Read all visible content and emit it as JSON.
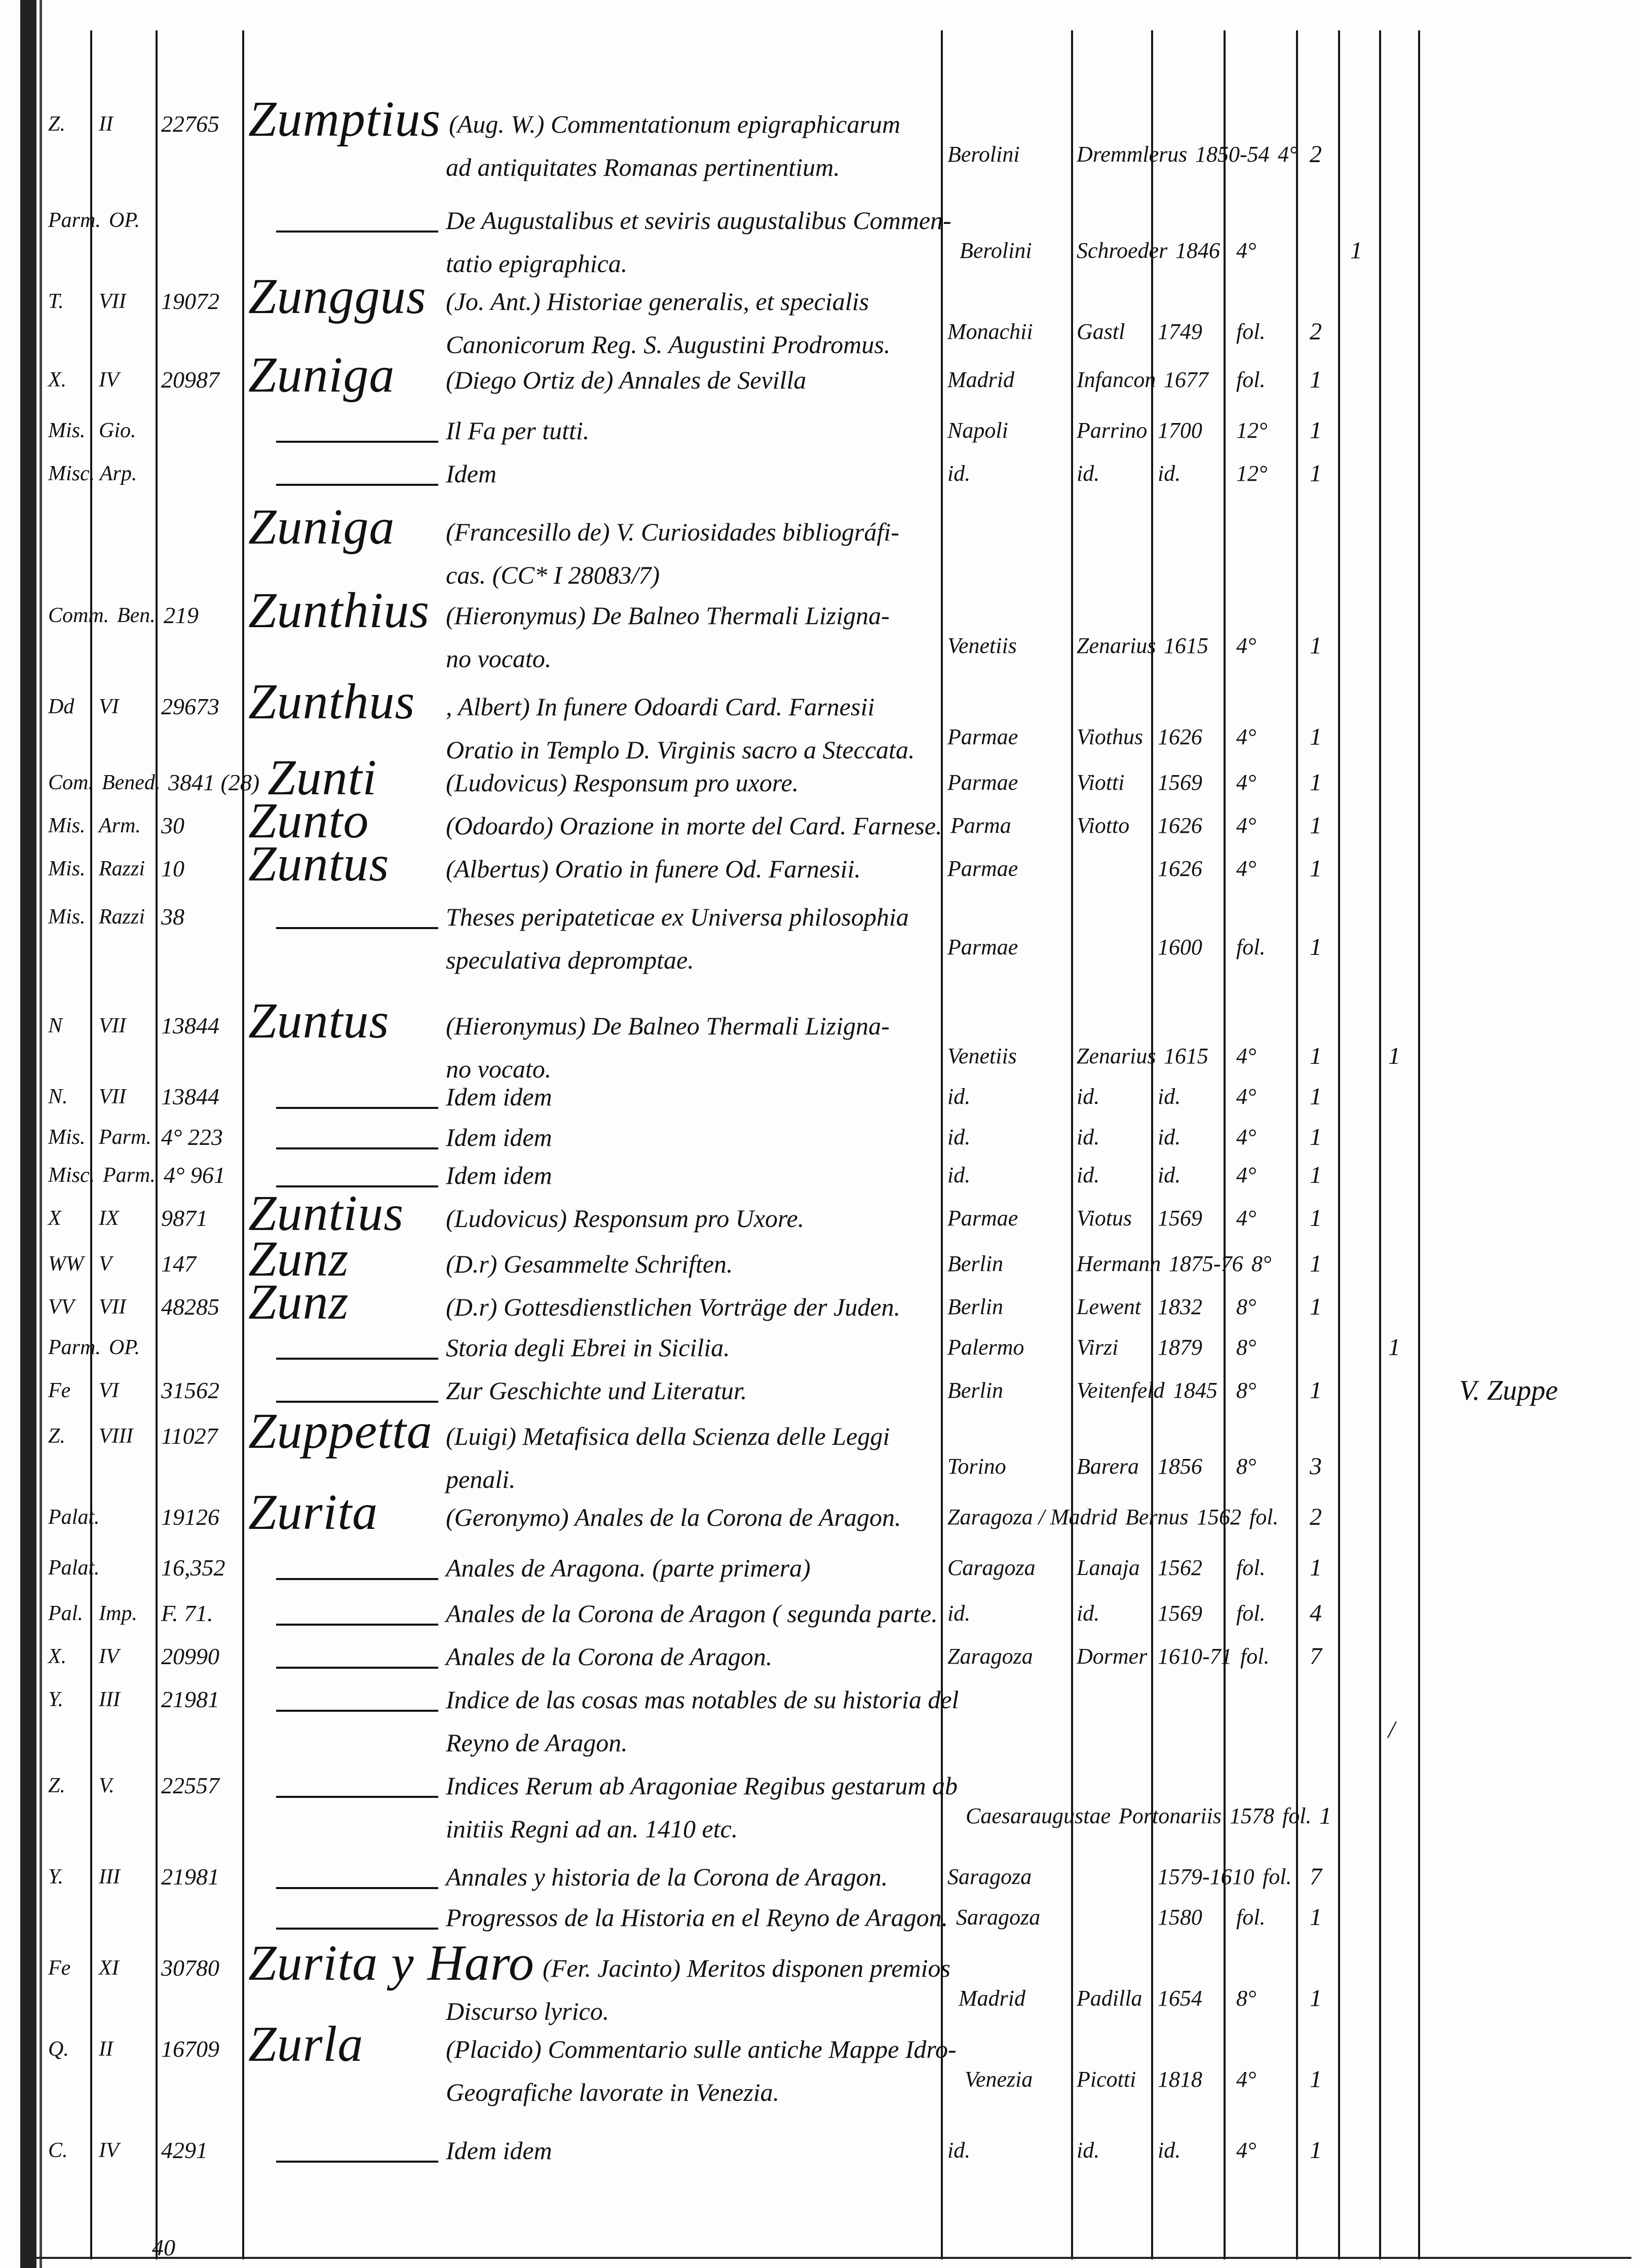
{
  "entries": [
    {
      "shelf": "Z.",
      "press": "II",
      "number": "22765",
      "author": "Zumptius",
      "title_lines": [
        "(Aug. W.) Commentationum epigraphicarum",
        "ad antiquitates Romanas pertinentium."
      ],
      "place": "Berolini",
      "publisher": "Dremmlerus",
      "year": "1850-54",
      "format": "4°",
      "vols": "2"
    },
    {
      "shelf": "Parm.",
      "press": "OP.",
      "dash": true,
      "title_lines": [
        "De Augustalibus et seviris augustalibus Commen-",
        "tatio epigraphica."
      ],
      "place": "Berolini",
      "publisher": "Schroeder",
      "year": "1846",
      "format": "4°",
      "extra1": "1"
    },
    {
      "shelf": "T.",
      "press": "VII",
      "number": "19072",
      "author": "Zunggus",
      "title_lines": [
        "(Jo. Ant.) Historiae generalis, et specialis",
        "Canonicorum Reg. S. Augustini Prodromus."
      ],
      "place": "Monachii",
      "publisher": "Gastl",
      "year": "1749",
      "format": "fol.",
      "vols": "2"
    },
    {
      "shelf": "X.",
      "press": "IV",
      "number": "20987",
      "author": "Zuniga",
      "title_lines": [
        "(Diego Ortiz de) Annales de Sevilla"
      ],
      "place": "Madrid",
      "publisher": "Infancon",
      "year": "1677",
      "format": "fol.",
      "vols": "1"
    },
    {
      "shelf": "Mis.",
      "press": "Gio.",
      "dash": true,
      "title_lines": [
        "Il Fa per tutti."
      ],
      "place": "Napoli",
      "publisher": "Parrino",
      "year": "1700",
      "format": "12°",
      "vols": "1"
    },
    {
      "shelf": "Misc. Arp.",
      "dash": true,
      "title_lines": [
        "Idem"
      ],
      "place": "id.",
      "publisher": "id.",
      "year": "id.",
      "format": "12°",
      "vols": "1"
    },
    {
      "author": "Zuniga",
      "title_lines": [
        "(Francesillo de) V. Curiosidades bibliográfi-",
        "cas. (CC* I 28083/7)"
      ]
    },
    {
      "shelf": "Comm.",
      "press": "Ben.",
      "number": "219",
      "author": "Zunthius",
      "title_lines": [
        "(Hieronymus) De Balneo Thermali Lizigna-",
        "no vocato."
      ],
      "place": "Venetiis",
      "publisher": "Zenarius",
      "year": "1615",
      "format": "4°",
      "vols": "1"
    },
    {
      "shelf": "Dd",
      "press": "VI",
      "number": "29673",
      "author": "Zunthus",
      "title_lines": [
        ", Albert) In funere Odoardi Card. Farnesii",
        "Oratio in Templo D. Virginis sacro a Steccata."
      ],
      "place": "Parmae",
      "publisher": "Viothus",
      "year": "1626",
      "format": "4°",
      "vols": "1"
    },
    {
      "shelf": "Com.",
      "press": "Bened.",
      "number": "3841 (28)",
      "author": "Zunti",
      "title_lines": [
        "(Ludovicus) Responsum pro uxore."
      ],
      "place": "Parmae",
      "publisher": "Viotti",
      "year": "1569",
      "format": "4°",
      "vols": "1"
    },
    {
      "shelf": "Mis.",
      "press": "Arm.",
      "number": "30",
      "author": "Zunto",
      "title_lines": [
        "(Odoardo) Orazione in morte del Card. Farnese."
      ],
      "place": "Parma",
      "publisher": "Viotto",
      "year": "1626",
      "format": "4°",
      "vols": "1"
    },
    {
      "shelf": "Mis.",
      "press": "Razzi",
      "number": "10",
      "author": "Zuntus",
      "title_lines": [
        "(Albertus) Oratio in funere Od. Farnesii."
      ],
      "place": "Parmae",
      "year": "1626",
      "format": "4°",
      "vols": "1"
    },
    {
      "shelf": "Mis.",
      "press": "Razzi",
      "number": "38",
      "dash": true,
      "title_lines": [
        "Theses peripateticae ex Universa philosophia",
        "speculativa depromptae."
      ],
      "place": "Parmae",
      "year": "1600",
      "format": "fol.",
      "vols": "1"
    },
    {
      "shelf": "N",
      "press": "VII",
      "number": "13844",
      "author": "Zuntus",
      "title_lines": [
        "(Hieronymus) De Balneo Thermali Lizigna-",
        "no vocato."
      ],
      "place": "Venetiis",
      "publisher": "Zenarius",
      "year": "1615",
      "format": "4°",
      "vols": "1",
      "extra2": "1"
    },
    {
      "shelf": "N.",
      "press": "VII",
      "number": "13844",
      "dash": true,
      "title_lines": [
        "Idem          idem"
      ],
      "place": "id.",
      "publisher": "id.",
      "year": "id.",
      "format": "4°",
      "vols": "1"
    },
    {
      "shelf": "Mis.",
      "press": "Parm.",
      "number": "4° 223",
      "dash": true,
      "title_lines": [
        "Idem          idem"
      ],
      "place": "id.",
      "publisher": "id.",
      "year": "id.",
      "format": "4°",
      "vols": "1"
    },
    {
      "shelf": "Misc.",
      "press": "Parm.",
      "number": "4° 961",
      "dash": true,
      "title_lines": [
        "Idem          idem"
      ],
      "place": "id.",
      "publisher": "id.",
      "year": "id.",
      "format": "4°",
      "vols": "1"
    },
    {
      "shelf": "X",
      "press": "IX",
      "number": "9871",
      "author": "Zuntius",
      "title_lines": [
        "(Ludovicus) Responsum pro Uxore."
      ],
      "place": "Parmae",
      "publisher": "Viotus",
      "year": "1569",
      "format": "4°",
      "vols": "1"
    },
    {
      "shelf": "WW",
      "press": "V",
      "number": "147",
      "author": "Zunz",
      "title_lines": [
        "(D.r) Gesammelte Schriften."
      ],
      "place": "Berlin",
      "publisher": "Hermann",
      "year": "1875-76",
      "format": "8°",
      "vols": "1"
    },
    {
      "shelf": "VV",
      "press": "VII",
      "number": "48285",
      "author": "Zunz",
      "title_lines": [
        "(D.r) Gottesdienstlichen Vorträge der Juden."
      ],
      "place": "Berlin",
      "publisher": "Lewent",
      "year": "1832",
      "format": "8°",
      "vols": "1"
    },
    {
      "shelf": "Parm.",
      "press": "OP.",
      "dash": true,
      "title_lines": [
        "Storia degli Ebrei in Sicilia."
      ],
      "place": "Palermo",
      "publisher": "Virzi",
      "year": "1879",
      "format": "8°",
      "extra2": "1"
    },
    {
      "shelf": "Fe",
      "press": "VI",
      "number": "31562",
      "dash": true,
      "title_lines": [
        "Zur Geschichte und Literatur."
      ],
      "place": "Berlin",
      "publisher": "Veitenfeld",
      "year": "1845",
      "format": "8°",
      "vols": "1",
      "note": "V. Zuppe"
    },
    {
      "shelf": "Z.",
      "press": "VIII",
      "number": "11027",
      "author": "Zuppetta",
      "title_lines": [
        "(Luigi) Metafisica della Scienza delle Leggi",
        "penali."
      ],
      "place": "Torino",
      "publisher": "Barera",
      "year": "1856",
      "format": "8°",
      "vols": "3"
    },
    {
      "shelf": "Palat.",
      "number": "19126",
      "author": "Zurita",
      "title_lines": [
        "(Geronymo) Anales de la Corona de Aragon."
      ],
      "place": "Zaragoza / Madrid",
      "publisher": "Bernus",
      "year": "1562",
      "format": "fol.",
      "vols": "2"
    },
    {
      "shelf": "Palat.",
      "number": "16,352",
      "dash": true,
      "title_lines": [
        "Anales de Aragona. (parte primera)"
      ],
      "place": "Caragoza",
      "publisher": "Lanaja",
      "year": "1562",
      "format": "fol.",
      "vols": "1"
    },
    {
      "shelf": "Pal.",
      "press": "Imp.",
      "number": "F. 71.",
      "dash": true,
      "title_lines": [
        "Anales de la Corona de Aragon ( segunda parte."
      ],
      "place": "id.",
      "publisher": "id.",
      "year": "1569",
      "format": "fol.",
      "vols": "4"
    },
    {
      "shelf": "X.",
      "press": "IV",
      "number": "20990",
      "dash": true,
      "title_lines": [
        "Anales de la Corona de Aragon."
      ],
      "place": "Zaragoza",
      "publisher": "Dormer",
      "year": "1610-71",
      "format": "fol.",
      "vols": "7"
    },
    {
      "shelf": "Y.",
      "press": "III",
      "number": "21981",
      "dash": true,
      "title_lines": [
        "Indice de las cosas mas notables de su historia del",
        "Reyno de Aragon."
      ],
      "extra2": "/"
    },
    {
      "shelf": "Z.",
      "press": "V.",
      "number": "22557",
      "dash": true,
      "title_lines": [
        "Indices Rerum ab Aragoniae Regibus gestarum ab",
        "initiis Regni ad an. 1410 etc."
      ],
      "place": "Caesaraugustae",
      "publisher": "Portonariis",
      "year": "1578",
      "format": "fol.",
      "vols": "1"
    },
    {
      "shelf": "Y.",
      "press": "III",
      "number": "21981",
      "dash": true,
      "title_lines": [
        "Annales y historia de la Corona de Aragon."
      ],
      "place": "Saragoza",
      "year": "1579-1610",
      "format": "fol.",
      "vols": "7"
    },
    {
      "dash": true,
      "title_lines": [
        "Progressos de la Historia en el Reyno de Aragon."
      ],
      "place": "Saragoza",
      "year": "1580",
      "format": "fol.",
      "vols": "1"
    },
    {
      "shelf": "Fe",
      "press": "XI",
      "number": "30780",
      "author": "Zurita y Haro",
      "title_lines": [
        "(Fer. Jacinto) Meritos disponen premios",
        "Discurso lyrico."
      ],
      "place": "Madrid",
      "publisher": "Padilla",
      "year": "1654",
      "format": "8°",
      "vols": "1"
    },
    {
      "shelf": "Q.",
      "press": "II",
      "number": "16709",
      "author": "Zurla",
      "title_lines": [
        "(Placido) Commentario sulle antiche Mappe Idro-",
        "Geografiche lavorate in Venezia."
      ],
      "place": "Venezia",
      "publisher": "Picotti",
      "year": "1818",
      "format": "4°",
      "vols": "1"
    },
    {
      "shelf": "C.",
      "press": "IV",
      "number": "4291",
      "dash": true,
      "title_lines": [
        "Idem          idem"
      ],
      "place": "id.",
      "publisher": "id.",
      "year": "id.",
      "format": "4°",
      "vols": "1"
    }
  ],
  "page_number": "40"
}
